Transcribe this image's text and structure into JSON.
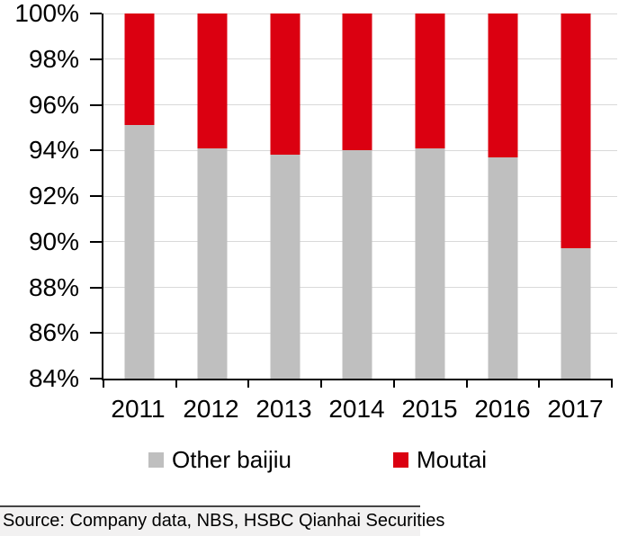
{
  "chart_data": {
    "type": "bar",
    "stacked": true,
    "title": "",
    "xlabel": "",
    "ylabel": "",
    "categories": [
      "2011",
      "2012",
      "2013",
      "2014",
      "2015",
      "2016",
      "2017"
    ],
    "series": [
      {
        "name": "Other baijiu",
        "color": "#bfbfbf",
        "values": [
          95.1,
          94.1,
          93.8,
          94.0,
          94.1,
          93.7,
          89.7
        ]
      },
      {
        "name": "Moutai",
        "color": "#db0011",
        "values": [
          4.9,
          5.9,
          6.2,
          6.0,
          5.9,
          6.3,
          10.3
        ]
      }
    ],
    "ylim": [
      84,
      100
    ],
    "yticks": [
      84,
      86,
      88,
      90,
      92,
      94,
      96,
      98,
      100
    ],
    "ytick_labels": [
      "84%",
      "86%",
      "88%",
      "90%",
      "92%",
      "94%",
      "96%",
      "98%",
      "100%"
    ],
    "grid": true,
    "legend_position": "bottom"
  },
  "legend": {
    "items": [
      {
        "label": "Other baijiu",
        "color": "#bfbfbf"
      },
      {
        "label": "Moutai",
        "color": "#db0011"
      }
    ]
  },
  "footer": {
    "source_text": "Source: Company data, NBS, HSBC Qianhai Securities"
  },
  "colors": {
    "moutai_red": "#db0011",
    "other_gray": "#bfbfbf",
    "gridline": "#d9d9d9",
    "axis": "#000000"
  }
}
